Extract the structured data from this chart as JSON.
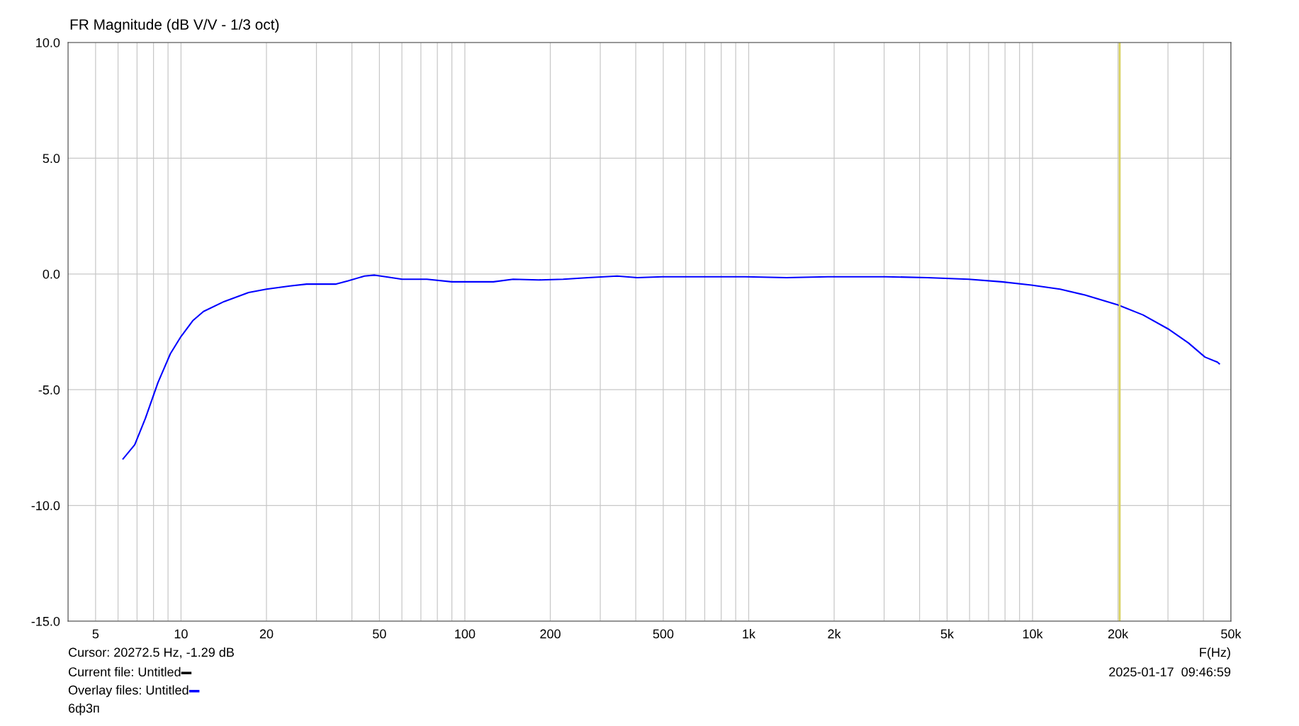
{
  "chart_data": {
    "type": "line",
    "title": "FR Magnitude (dB V/V - 1/3 oct)",
    "xlabel": "F(Hz)",
    "log": "x",
    "grid": true,
    "line_style": "solid",
    "marker": "none",
    "xlim": [
      4,
      50000
    ],
    "ylim": [
      -15,
      10
    ],
    "xticks": [
      5,
      {
        "value": 6,
        "label": null
      },
      {
        "value": 7,
        "label": null
      },
      {
        "value": 8,
        "label": null
      },
      {
        "value": 9,
        "label": null
      },
      10,
      20,
      {
        "value": 30,
        "label": null
      },
      {
        "value": 40,
        "label": null
      },
      50,
      {
        "value": 60,
        "label": null
      },
      {
        "value": 70,
        "label": null
      },
      {
        "value": 80,
        "label": null
      },
      {
        "value": 90,
        "label": null
      },
      100,
      200,
      {
        "value": 300,
        "label": null
      },
      {
        "value": 400,
        "label": null
      },
      500,
      {
        "value": 600,
        "label": null
      },
      {
        "value": 700,
        "label": null
      },
      {
        "value": 800,
        "label": null
      },
      {
        "value": 900,
        "label": null
      },
      {
        "value": 1000,
        "label": "1k"
      },
      {
        "value": 2000,
        "label": "2k"
      },
      {
        "value": 3000,
        "label": null
      },
      {
        "value": 4000,
        "label": null
      },
      {
        "value": 5000,
        "label": "5k"
      },
      {
        "value": 6000,
        "label": null
      },
      {
        "value": 7000,
        "label": null
      },
      {
        "value": 8000,
        "label": null
      },
      {
        "value": 9000,
        "label": null
      },
      {
        "value": 10000,
        "label": "10k"
      },
      {
        "value": 20000,
        "label": "20k"
      },
      {
        "value": 30000,
        "label": null
      },
      {
        "value": 40000,
        "label": null
      },
      {
        "value": 50000,
        "label": "50k"
      }
    ],
    "yticks": [
      {
        "value": 10,
        "label": "10.0"
      },
      {
        "value": 5,
        "label": "5.0"
      },
      {
        "value": 0,
        "label": "0.0"
      },
      {
        "value": -5,
        "label": "-5.0"
      },
      {
        "value": -10,
        "label": "-10.0"
      },
      {
        "value": -15,
        "label": "-15.0"
      }
    ],
    "ref_lines": [
      {
        "axis": "x",
        "value": 20272.5,
        "color": "#d8d060"
      }
    ],
    "series": [
      {
        "color": "#0000ff",
        "x": [
          6.25,
          6.87,
          7.49,
          8.29,
          9.17,
          10,
          11,
          12,
          14.2,
          17.3,
          20,
          24.2,
          27.7,
          35,
          38.8,
          44.3,
          48.1,
          52.6,
          60.1,
          73.5,
          89.9,
          99.5,
          126,
          148,
          182,
          222,
          272,
          344,
          405,
          497,
          973,
          1360,
          1900,
          3040,
          4260,
          5950,
          7790,
          9900,
          12500,
          15300,
          20000,
          24500,
          30000,
          35400,
          40500,
          44800,
          45500
        ],
        "values": [
          -7.99,
          -7.38,
          -6.24,
          -4.7,
          -3.45,
          -2.7,
          -2.02,
          -1.62,
          -1.19,
          -0.8,
          -0.66,
          -0.52,
          -0.44,
          -0.44,
          -0.3,
          -0.09,
          -0.05,
          -0.12,
          -0.23,
          -0.23,
          -0.34,
          -0.34,
          -0.34,
          -0.23,
          -0.26,
          -0.23,
          -0.16,
          -0.09,
          -0.16,
          -0.12,
          -0.12,
          -0.16,
          -0.12,
          -0.12,
          -0.16,
          -0.23,
          -0.34,
          -0.48,
          -0.66,
          -0.91,
          -1.34,
          -1.77,
          -2.37,
          -2.98,
          -3.59,
          -3.81,
          -3.88
        ]
      }
    ],
    "annotations": [
      "Cursor: 20272.5 Hz, -1.29 dB",
      "Current file: Untitled",
      "Overlay files: Untitled",
      "6ф3п",
      "2025-01-17  09:46:59"
    ]
  }
}
